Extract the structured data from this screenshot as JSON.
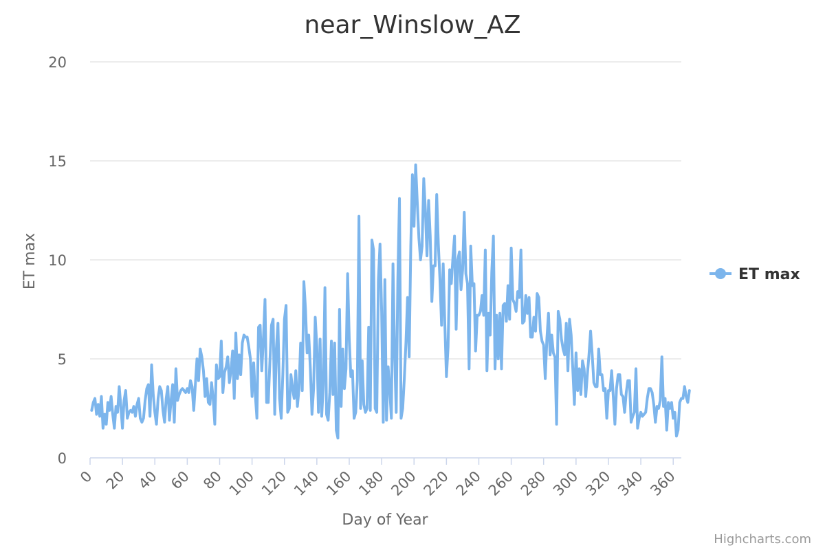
{
  "chart_data": {
    "type": "line",
    "title": "near_Winslow_AZ",
    "xlabel": "Day of Year",
    "ylabel": "ET max",
    "xlim": [
      0,
      365
    ],
    "ylim": [
      0,
      20
    ],
    "x_ticks": [
      0,
      20,
      40,
      60,
      80,
      100,
      120,
      140,
      160,
      180,
      200,
      220,
      240,
      260,
      280,
      300,
      320,
      340,
      360
    ],
    "y_ticks": [
      0,
      5,
      10,
      15,
      20
    ],
    "grid": true,
    "legend_position": "right",
    "series": [
      {
        "name": "ET max",
        "color": "#7cb5ec",
        "x_start": 1,
        "x_step": 1,
        "values": [
          2.4,
          2.8,
          3.0,
          2.2,
          2.7,
          2.1,
          3.1,
          1.5,
          2.2,
          1.7,
          2.8,
          2.4,
          3.1,
          2.2,
          1.5,
          2.6,
          2.3,
          3.6,
          2.6,
          1.5,
          2.9,
          3.4,
          2.0,
          2.3,
          2.4,
          2.3,
          2.6,
          2.1,
          2.7,
          3.0,
          2.0,
          1.8,
          2.0,
          2.9,
          3.5,
          3.7,
          2.1,
          4.7,
          3.2,
          2.3,
          1.7,
          3.0,
          3.6,
          3.4,
          2.4,
          1.8,
          3.0,
          3.6,
          1.9,
          2.9,
          3.7,
          1.8,
          4.5,
          2.9,
          3.2,
          3.4,
          3.5,
          3.4,
          3.3,
          3.5,
          3.3,
          3.9,
          3.6,
          2.4,
          3.7,
          5.0,
          3.9,
          5.5,
          5.1,
          4.4,
          3.1,
          4.0,
          2.8,
          2.7,
          3.8,
          3.0,
          1.7,
          4.7,
          4.0,
          4.1,
          5.9,
          3.3,
          4.3,
          4.6,
          5.1,
          3.8,
          4.4,
          5.4,
          3.0,
          6.3,
          4.0,
          5.2,
          4.2,
          5.8,
          6.2,
          6.1,
          6.1,
          5.6,
          5.0,
          3.1,
          4.8,
          3.2,
          2.0,
          6.6,
          6.7,
          4.4,
          6.0,
          8.0,
          2.8,
          2.8,
          4.8,
          6.7,
          7.0,
          2.2,
          5.5,
          6.8,
          3.0,
          2.0,
          4.2,
          7.0,
          7.7,
          2.3,
          2.5,
          4.2,
          3.5,
          3.0,
          4.4,
          2.6,
          3.5,
          5.8,
          3.4,
          8.9,
          7.5,
          5.3,
          6.2,
          4.5,
          2.2,
          3.5,
          7.1,
          5.6,
          2.3,
          6.0,
          2.1,
          3.7,
          8.6,
          2.2,
          1.9,
          3.3,
          5.9,
          3.2,
          5.8,
          1.4,
          1.0,
          7.5,
          2.6,
          5.5,
          3.5,
          4.5,
          9.3,
          6.0,
          4.1,
          4.4,
          2.0,
          2.3,
          3.9,
          12.2,
          2.5,
          4.9,
          2.7,
          2.3,
          2.5,
          6.6,
          2.4,
          11.0,
          10.5,
          2.5,
          2.3,
          9.0,
          10.8,
          7.4,
          1.8,
          9.0,
          1.9,
          4.6,
          3.5,
          2.0,
          9.8,
          5.3,
          2.3,
          9.0,
          13.1,
          2.0,
          2.5,
          4.0,
          5.8,
          8.1,
          5.1,
          10.7,
          14.3,
          11.7,
          14.8,
          12.9,
          11.1,
          10.0,
          10.7,
          14.1,
          12.5,
          10.2,
          13.0,
          11.2,
          7.9,
          9.7,
          9.7,
          13.3,
          10.8,
          9.0,
          6.7,
          9.8,
          6.8,
          4.1,
          5.6,
          9.5,
          8.8,
          10.1,
          11.2,
          6.5,
          10.0,
          10.4,
          8.5,
          9.5,
          12.4,
          9.3,
          8.8,
          4.5,
          10.7,
          8.7,
          8.8,
          5.4,
          7.2,
          7.2,
          7.4,
          8.2,
          7.2,
          10.5,
          4.4,
          7.3,
          6.2,
          9.4,
          11.2,
          4.5,
          7.2,
          5.0,
          7.3,
          4.5,
          7.7,
          7.8,
          6.9,
          8.7,
          7.0,
          10.6,
          8.0,
          7.8,
          7.4,
          8.4,
          8.1,
          10.5,
          6.8,
          6.9,
          8.2,
          7.3,
          8.1,
          6.1,
          6.1,
          7.1,
          6.4,
          8.3,
          8.1,
          6.4,
          5.9,
          5.7,
          4.0,
          6.0,
          7.3,
          5.2,
          6.2,
          5.3,
          5.1,
          1.7,
          7.4,
          7.0,
          6.0,
          5.5,
          5.2,
          6.8,
          4.4,
          7.0,
          6.2,
          4.5,
          2.7,
          5.3,
          3.4,
          4.5,
          3.2,
          4.9,
          4.5,
          3.1,
          4.2,
          5.2,
          6.4,
          5.2,
          3.8,
          3.6,
          3.6,
          5.5,
          4.2,
          4.2,
          3.4,
          3.5,
          2.0,
          3.4,
          3.4,
          4.4,
          3.1,
          1.7,
          3.5,
          4.2,
          4.2,
          3.2,
          3.1,
          2.3,
          3.3,
          3.9,
          3.9,
          1.8,
          2.1,
          2.3,
          4.5,
          1.5,
          2.0,
          2.3,
          2.1,
          2.2,
          2.3,
          3.0,
          3.5,
          3.5,
          3.3,
          2.7,
          1.8,
          2.6,
          2.5,
          2.9,
          5.1,
          2.6,
          3.0,
          1.4,
          2.8,
          2.5,
          2.8,
          2.0,
          2.3,
          1.1,
          1.4,
          2.8,
          3.0,
          3.0,
          3.6,
          3.1,
          2.8,
          3.4
        ]
      }
    ]
  },
  "credits": "Highcharts.com"
}
